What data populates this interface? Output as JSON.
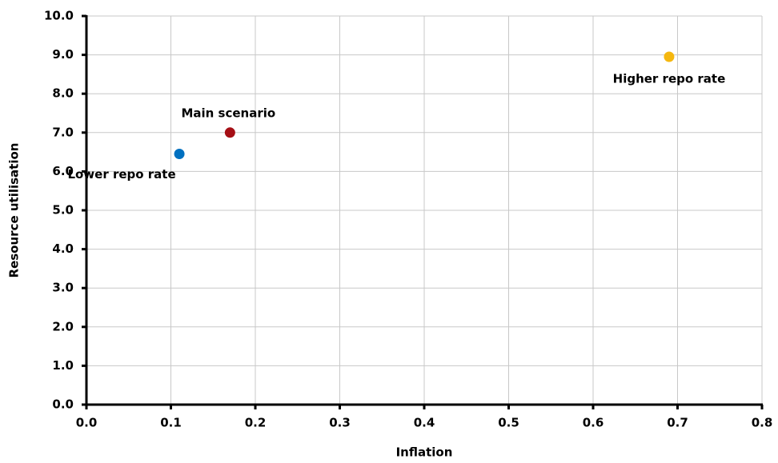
{
  "chart_data": {
    "type": "scatter",
    "x_label": "Inflation",
    "y_label": "Resource utilisation",
    "xlim": [
      0,
      0.8
    ],
    "xticks": [
      {
        "value": 0,
        "label": "0.0"
      },
      0.1,
      0.2,
      0.3,
      0.4,
      0.5,
      0.6,
      0.7,
      0.8
    ],
    "ylim": [
      0,
      10
    ],
    "yticks": [
      {
        "value": 0,
        "label": "0.0"
      },
      {
        "value": 1,
        "label": "1.0"
      },
      {
        "value": 2,
        "label": "2.0"
      },
      {
        "value": 3,
        "label": "3.0"
      },
      {
        "value": 4,
        "label": "4.0"
      },
      {
        "value": 5,
        "label": "5.0"
      },
      {
        "value": 6,
        "label": "6.0"
      },
      {
        "value": 7,
        "label": "7.0"
      },
      {
        "value": 8,
        "label": "8.0"
      },
      {
        "value": 9,
        "label": "9.0"
      },
      {
        "value": 10,
        "label": "10.0"
      }
    ],
    "grid": true,
    "series": [
      {
        "name": "Lower repo rate",
        "color": "#0070c0",
        "x": [
          0.11
        ],
        "values": [
          6.45
        ]
      },
      {
        "name": "Main scenario",
        "color": "#a50f15",
        "x": [
          0.17
        ],
        "values": [
          7.0
        ]
      },
      {
        "name": "Higher repo rate",
        "color": "#f5b70f",
        "x": [
          0.69
        ],
        "values": [
          8.95
        ]
      }
    ]
  }
}
